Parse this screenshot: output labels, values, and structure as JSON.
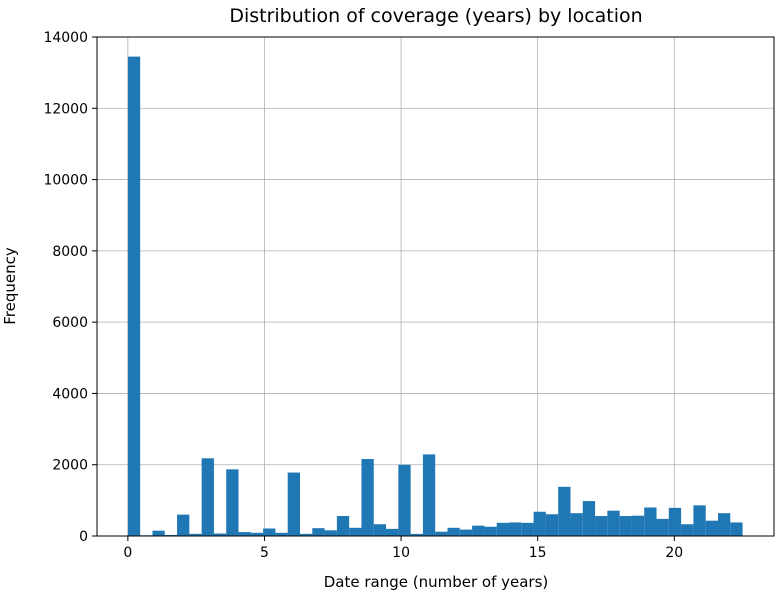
{
  "chart_data": {
    "type": "bar",
    "title": "Distribution of coverage (years) by location",
    "xlabel": "Date range (number of years)",
    "ylabel": "Frequency",
    "xlim": [
      -1.13,
      23.65
    ],
    "ylim": [
      0,
      14000
    ],
    "xticks": [
      0,
      5,
      10,
      15,
      20
    ],
    "yticks": [
      0,
      2000,
      4000,
      6000,
      8000,
      10000,
      12000,
      14000
    ],
    "grid": true,
    "color": "#1f77b4",
    "bin_width": 0.45,
    "bin_left_edges": [
      0.0,
      0.45,
      0.9,
      1.35,
      1.8,
      2.25,
      2.7,
      3.15,
      3.6,
      4.05,
      4.5,
      4.95,
      5.4,
      5.85,
      6.3,
      6.75,
      7.2,
      7.65,
      8.1,
      8.55,
      9.0,
      9.45,
      9.9,
      10.35,
      10.8,
      11.25,
      11.7,
      12.15,
      12.6,
      13.05,
      13.5,
      13.95,
      14.4,
      14.85,
      15.3,
      15.75,
      16.2,
      16.65,
      17.1,
      17.55,
      18.0,
      18.45,
      18.9,
      19.35,
      19.8,
      20.25,
      20.7,
      21.15,
      21.6,
      22.05
    ],
    "values": [
      13450,
      20,
      150,
      30,
      600,
      60,
      2180,
      70,
      1870,
      110,
      90,
      210,
      90,
      1780,
      60,
      220,
      160,
      560,
      230,
      2160,
      330,
      200,
      2000,
      60,
      2290,
      120,
      230,
      180,
      290,
      260,
      370,
      380,
      370,
      680,
      610,
      1380,
      640,
      980,
      560,
      710,
      560,
      570,
      800,
      480,
      790,
      330,
      860,
      430,
      640,
      380
    ]
  }
}
